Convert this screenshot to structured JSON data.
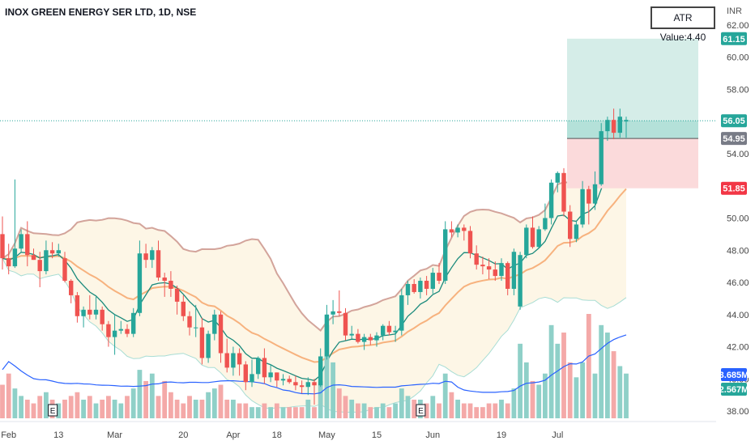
{
  "header": {
    "title": "INOX GREEN ENERGY SER LTD, 1D, NSE",
    "atr_label": "ATR Value:4.40",
    "currency": "INR"
  },
  "colors": {
    "up": "#26a69a",
    "down": "#ef5350",
    "upVol": "#8fd0c8",
    "downVol": "#f4a9a8",
    "ema_fast": "#1a8a7c",
    "ema_slow": "#f7b27e",
    "bb_upper": "#d3a49b",
    "bb_lower": "#a8ddd4",
    "bb_fill": "#fdf6e6",
    "vol_ma": "#2962ff",
    "target_zone": "#d5ede8",
    "stop_zone": "#fbdadb",
    "entry_zone": "#9fd8cf",
    "target_tag": "#26a69a",
    "stop_tag": "#f23645",
    "entry_tag": "#787b86",
    "vol_tag": "#2962ff",
    "vol2_tag": "#26a69a"
  },
  "chart_data": {
    "type": "candlestick",
    "symbol": "INOX GREEN ENERGY SER LTD",
    "interval": "1D",
    "exchange": "NSE",
    "ylim": [
      37.4,
      62.8
    ],
    "y_ticks": [
      38,
      40,
      42,
      44,
      46,
      48,
      50,
      54,
      58,
      60,
      62
    ],
    "x_labels": [
      "Feb",
      "13",
      "Mar",
      "20",
      "Apr",
      "18",
      "May",
      "15",
      "Jun",
      "19",
      "Jul"
    ],
    "x_label_index": [
      1,
      9,
      18,
      29,
      37,
      44,
      52,
      60,
      69,
      80,
      89
    ],
    "earnings_markers": {
      "label": "E",
      "index": [
        8,
        67
      ]
    },
    "ohlc": [
      [
        49.0,
        50.1,
        46.8,
        47.5
      ],
      [
        47.5,
        48.4,
        46.5,
        47.0
      ],
      [
        47.0,
        52.4,
        46.9,
        48.1
      ],
      [
        48.1,
        49.3,
        47.9,
        49.0
      ],
      [
        49.0,
        49.8,
        47.0,
        47.7
      ],
      [
        47.7,
        48.1,
        47.4,
        47.4
      ],
      [
        47.4,
        47.9,
        45.7,
        46.7
      ],
      [
        46.7,
        48.6,
        46.5,
        48.0
      ],
      [
        48.0,
        48.5,
        47.5,
        47.8
      ],
      [
        47.8,
        48.4,
        47.6,
        48.0
      ],
      [
        47.5,
        47.9,
        46.0,
        46.1
      ],
      [
        46.1,
        46.2,
        44.7,
        45.2
      ],
      [
        45.2,
        45.4,
        43.5,
        43.9
      ],
      [
        43.9,
        44.5,
        43.2,
        44.3
      ],
      [
        44.3,
        45.2,
        43.7,
        44.0
      ],
      [
        44.0,
        45.1,
        43.7,
        44.3
      ],
      [
        44.3,
        44.5,
        43.0,
        43.4
      ],
      [
        43.4,
        43.6,
        42.0,
        42.6
      ],
      [
        42.6,
        44.0,
        41.5,
        43.0
      ],
      [
        43.0,
        43.6,
        42.8,
        43.1
      ],
      [
        43.1,
        43.4,
        42.6,
        42.8
      ],
      [
        42.8,
        44.4,
        42.6,
        44.1
      ],
      [
        44.1,
        48.6,
        43.9,
        47.8
      ],
      [
        47.8,
        48.4,
        46.9,
        47.4
      ],
      [
        47.4,
        48.2,
        46.9,
        48.0
      ],
      [
        48.0,
        48.6,
        46.1,
        46.3
      ],
      [
        46.3,
        46.6,
        45.1,
        46.1
      ],
      [
        46.1,
        46.7,
        45.1,
        45.6
      ],
      [
        45.6,
        45.8,
        44.0,
        44.8
      ],
      [
        44.8,
        45.2,
        43.6,
        43.9
      ],
      [
        43.9,
        44.2,
        42.7,
        43.2
      ],
      [
        43.2,
        44.6,
        42.6,
        43.2
      ],
      [
        43.2,
        43.8,
        40.9,
        41.3
      ],
      [
        41.3,
        43.0,
        41.0,
        42.8
      ],
      [
        42.8,
        44.3,
        42.4,
        44.0
      ],
      [
        44.0,
        44.2,
        41.0,
        41.6
      ],
      [
        41.6,
        42.5,
        40.4,
        40.7
      ],
      [
        40.7,
        42.0,
        40.2,
        41.6
      ],
      [
        41.6,
        41.9,
        40.2,
        40.9
      ],
      [
        40.9,
        41.1,
        39.3,
        39.8
      ],
      [
        39.8,
        41.2,
        39.5,
        40.3
      ],
      [
        40.3,
        41.4,
        40.0,
        41.3
      ],
      [
        41.3,
        41.9,
        39.7,
        40.1
      ],
      [
        40.1,
        40.9,
        39.8,
        40.4
      ],
      [
        40.4,
        40.4,
        39.5,
        39.9
      ],
      [
        39.9,
        40.3,
        39.6,
        40.0
      ],
      [
        40.0,
        40.2,
        39.7,
        39.8
      ],
      [
        39.8,
        40.2,
        39.3,
        39.6
      ],
      [
        39.6,
        39.9,
        39.1,
        39.5
      ],
      [
        39.5,
        40.1,
        39.0,
        39.8
      ],
      [
        39.8,
        40.0,
        38.4,
        39.6
      ],
      [
        39.6,
        41.9,
        39.5,
        41.4
      ],
      [
        41.4,
        44.6,
        41.2,
        44.0
      ],
      [
        44.0,
        44.9,
        43.4,
        44.2
      ],
      [
        44.2,
        45.5,
        43.9,
        44.1
      ],
      [
        44.1,
        44.4,
        42.4,
        42.7
      ],
      [
        42.7,
        43.3,
        42.5,
        42.8
      ],
      [
        42.8,
        43.1,
        42.2,
        42.3
      ],
      [
        42.3,
        42.8,
        41.8,
        42.6
      ],
      [
        42.6,
        42.8,
        42.1,
        42.4
      ],
      [
        42.4,
        42.9,
        42.0,
        42.7
      ],
      [
        42.7,
        43.4,
        42.4,
        43.3
      ],
      [
        43.3,
        43.6,
        42.7,
        42.9
      ],
      [
        42.9,
        43.3,
        42.3,
        43.0
      ],
      [
        43.0,
        45.6,
        42.7,
        45.2
      ],
      [
        45.2,
        46.1,
        44.6,
        45.9
      ],
      [
        45.9,
        46.2,
        45.3,
        45.4
      ],
      [
        45.4,
        46.3,
        45.0,
        46.1
      ],
      [
        46.1,
        46.4,
        45.2,
        45.6
      ],
      [
        45.6,
        46.9,
        45.3,
        46.6
      ],
      [
        46.6,
        47.2,
        45.9,
        46.1
      ],
      [
        46.1,
        49.8,
        45.9,
        49.3
      ],
      [
        49.3,
        49.8,
        48.8,
        49.1
      ],
      [
        49.1,
        49.6,
        48.8,
        49.4
      ],
      [
        49.4,
        49.6,
        48.6,
        49.2
      ],
      [
        49.2,
        49.5,
        47.5,
        47.8
      ],
      [
        47.8,
        48.3,
        46.8,
        47.1
      ],
      [
        47.1,
        47.6,
        46.5,
        47.0
      ],
      [
        47.0,
        47.5,
        46.2,
        46.8
      ],
      [
        46.8,
        47.3,
        46.1,
        46.4
      ],
      [
        46.4,
        47.5,
        46.1,
        47.2
      ],
      [
        47.2,
        47.3,
        45.2,
        45.6
      ],
      [
        45.6,
        48.1,
        45.2,
        47.9
      ],
      [
        44.5,
        47.9,
        44.3,
        47.7
      ],
      [
        47.7,
        49.6,
        47.5,
        49.4
      ],
      [
        49.4,
        50.1,
        48.1,
        48.2
      ],
      [
        48.2,
        49.5,
        48.1,
        49.3
      ],
      [
        49.3,
        50.9,
        49.2,
        50.0
      ],
      [
        50.0,
        52.4,
        49.6,
        52.2
      ],
      [
        52.2,
        52.9,
        51.6,
        52.8
      ],
      [
        52.8,
        53.1,
        50.1,
        50.4
      ],
      [
        50.4,
        50.8,
        48.2,
        48.7
      ],
      [
        48.7,
        49.8,
        48.5,
        49.6
      ],
      [
        49.6,
        52.3,
        49.4,
        51.8
      ],
      [
        51.8,
        52.0,
        49.6,
        50.9
      ],
      [
        50.9,
        52.9,
        50.5,
        52.1
      ],
      [
        52.1,
        55.9,
        52.0,
        55.4
      ],
      [
        55.4,
        56.3,
        54.8,
        56.1
      ],
      [
        56.1,
        56.8,
        54.9,
        55.3
      ],
      [
        55.3,
        56.8,
        55.0,
        56.3
      ],
      [
        56.0,
        56.3,
        55.0,
        56.1
      ]
    ],
    "volume_m": [
      0.9,
      1.2,
      0.8,
      0.6,
      0.5,
      0.4,
      0.6,
      0.7,
      0.5,
      0.4,
      0.5,
      0.6,
      0.7,
      0.5,
      0.6,
      0.4,
      0.5,
      0.6,
      0.5,
      0.4,
      0.6,
      0.8,
      1.3,
      1.0,
      1.2,
      0.6,
      1.0,
      0.7,
      0.5,
      0.4,
      0.6,
      0.5,
      0.5,
      0.7,
      0.8,
      0.9,
      0.5,
      0.5,
      0.4,
      0.4,
      0.3,
      0.3,
      0.4,
      0.3,
      0.4,
      0.3,
      0.3,
      0.3,
      0.3,
      0.5,
      0.3,
      1.0,
      2.5,
      1.5,
      0.8,
      0.6,
      0.5,
      0.4,
      0.4,
      0.3,
      0.3,
      0.4,
      0.3,
      0.4,
      0.8,
      0.6,
      0.5,
      0.5,
      0.4,
      0.6,
      0.4,
      1.2,
      0.7,
      0.5,
      0.4,
      0.4,
      0.3,
      0.3,
      0.4,
      0.4,
      0.5,
      0.4,
      0.8,
      2.0,
      1.5,
      1.0,
      0.9,
      1.2,
      2.5,
      2.0,
      2.3,
      1.5,
      1.1,
      1.5,
      2.8,
      1.2,
      2.5,
      2.3,
      1.8,
      1.4,
      1.2
    ],
    "trade_setup": {
      "target": 61.15,
      "entry": 54.95,
      "stop": 51.85
    },
    "last_price": 56.05,
    "volume_labels": {
      "primary": "3.685M",
      "secondary": "2.567M"
    },
    "price_tags": {
      "target": "61.15",
      "last": "56.05",
      "entry": "54.95",
      "stop": "51.85"
    }
  }
}
